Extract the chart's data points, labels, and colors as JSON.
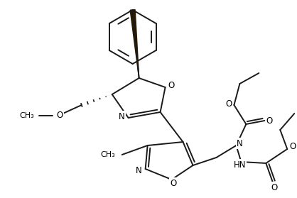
{
  "bg_color": "#ffffff",
  "line_color": "#1a1a1a",
  "lw": 1.4,
  "figsize": [
    4.18,
    2.79
  ],
  "dpi": 100,
  "xlim": [
    0,
    418
  ],
  "ylim": [
    0,
    279
  ]
}
